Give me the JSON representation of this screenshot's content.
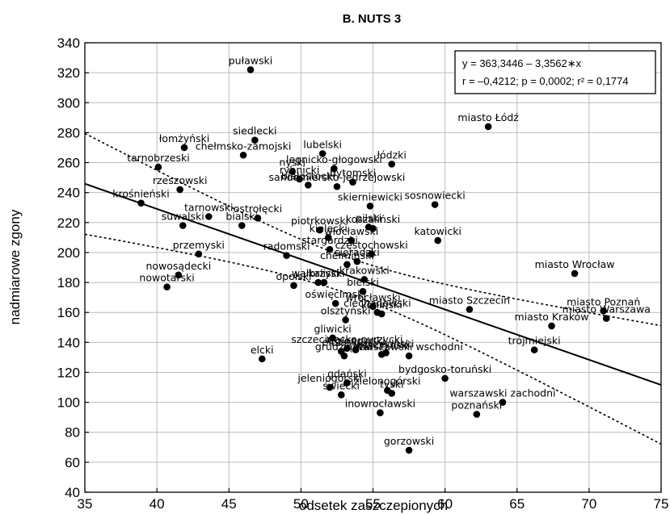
{
  "chart_data": {
    "type": "scatter",
    "title": "B. NUTS 3",
    "xlabel": "odsetek zaszczepionych",
    "ylabel": "nadmiarowe zgony",
    "xlim": [
      35,
      75
    ],
    "ylim": [
      40,
      340
    ],
    "xticks": [
      35,
      40,
      45,
      50,
      55,
      60,
      65,
      70,
      75
    ],
    "yticks": [
      40,
      60,
      80,
      100,
      120,
      140,
      160,
      180,
      200,
      220,
      240,
      260,
      280,
      300,
      320,
      340
    ],
    "grid": true,
    "regression": {
      "intercept": 363.3446,
      "slope": -3.3562
    },
    "annotation": {
      "line1": "y = 363,3446 – 3,3562∗x",
      "line2": "r = –0,4212; p = 0,0002; r² = 0,1774"
    },
    "points": [
      {
        "label": "puławski",
        "x": 46.5,
        "y": 322
      },
      {
        "label": "miasto Łódź",
        "x": 63.0,
        "y": 284
      },
      {
        "label": "siedlecki",
        "x": 46.8,
        "y": 275
      },
      {
        "label": "łomżyński",
        "x": 41.9,
        "y": 270
      },
      {
        "label": "chełmsko-zamojski",
        "x": 46.0,
        "y": 265
      },
      {
        "label": "lubelski",
        "x": 51.5,
        "y": 266
      },
      {
        "label": "łódzki",
        "x": 56.3,
        "y": 259
      },
      {
        "label": "tarnobrzeski",
        "x": 40.1,
        "y": 257
      },
      {
        "label": "legnicko-głogowski",
        "x": 52.3,
        "y": 256
      },
      {
        "label": "nyski",
        "x": 49.4,
        "y": 254
      },
      {
        "label": "rybnicki",
        "x": 49.9,
        "y": 249
      },
      {
        "label": "białostocki",
        "x": 50.5,
        "y": 245
      },
      {
        "label": "bytomski",
        "x": 53.6,
        "y": 247
      },
      {
        "label": "rzeszowski",
        "x": 41.6,
        "y": 242
      },
      {
        "label": "sandomiersko-jędrzejowski",
        "x": 52.5,
        "y": 244
      },
      {
        "label": "krośnieński",
        "x": 38.9,
        "y": 233
      },
      {
        "label": "skierniewicki",
        "x": 54.8,
        "y": 231
      },
      {
        "label": "sosnowiecki",
        "x": 59.3,
        "y": 232
      },
      {
        "label": "tarnowski",
        "x": 43.6,
        "y": 224
      },
      {
        "label": "ostrołęcki",
        "x": 47.0,
        "y": 223
      },
      {
        "label": "suwalski",
        "x": 41.8,
        "y": 218
      },
      {
        "label": "bialski",
        "x": 45.9,
        "y": 218
      },
      {
        "label": "piotrkowski",
        "x": 51.3,
        "y": 215
      },
      {
        "label": "pilski",
        "x": 54.7,
        "y": 217
      },
      {
        "label": "koszaliński",
        "x": 55.0,
        "y": 216
      },
      {
        "label": "kielecki",
        "x": 51.9,
        "y": 210
      },
      {
        "label": "włocławski",
        "x": 53.5,
        "y": 208
      },
      {
        "label": "katowicki",
        "x": 59.5,
        "y": 208
      },
      {
        "label": "stargardzki",
        "x": 52.0,
        "y": 202
      },
      {
        "label": "przemyski",
        "x": 42.9,
        "y": 199
      },
      {
        "label": "radomski",
        "x": 49.0,
        "y": 198
      },
      {
        "label": "częstochowski",
        "x": 54.9,
        "y": 199
      },
      {
        "label": "chełmiński",
        "x": 53.2,
        "y": 192
      },
      {
        "label": "sieradzki",
        "x": 53.9,
        "y": 194
      },
      {
        "label": "miasto Wrocław",
        "x": 69.0,
        "y": 186
      },
      {
        "label": "nowosądecki",
        "x": 41.5,
        "y": 185
      },
      {
        "label": "wałbrzyski",
        "x": 51.2,
        "y": 180
      },
      {
        "label": "krakowski",
        "x": 54.4,
        "y": 182
      },
      {
        "label": "nowotarski",
        "x": 40.7,
        "y": 177
      },
      {
        "label": "opolski",
        "x": 49.5,
        "y": 178
      },
      {
        "label": "kaliski",
        "x": 51.6,
        "y": 180
      },
      {
        "label": "bielski",
        "x": 54.3,
        "y": 174
      },
      {
        "label": "wrocławski",
        "x": 55.0,
        "y": 164
      },
      {
        "label": "oświęcimski",
        "x": 52.4,
        "y": 166
      },
      {
        "label": "miasto Szczecin",
        "x": 61.7,
        "y": 162
      },
      {
        "label": "miasto Poznań",
        "x": 71.0,
        "y": 161
      },
      {
        "label": "miasto Kraków",
        "x": 67.4,
        "y": 151
      },
      {
        "label": "miasto Warszawa",
        "x": 71.2,
        "y": 156
      },
      {
        "label": "olsztyński",
        "x": 53.1,
        "y": 155
      },
      {
        "label": "ciechanowski",
        "x": 55.3,
        "y": 160
      },
      {
        "label": "koniński",
        "x": 55.6,
        "y": 159
      },
      {
        "label": "szczeciński",
        "x": 55.9,
        "y": 133
      },
      {
        "label": "gliwicki",
        "x": 52.2,
        "y": 143
      },
      {
        "label": "szczecinecko-pyrzycki",
        "x": 53.2,
        "y": 136
      },
      {
        "label": "leszczyński",
        "x": 55.6,
        "y": 132
      },
      {
        "label": "trójmiejski",
        "x": 66.2,
        "y": 135
      },
      {
        "label": "legionowski",
        "x": 53.8,
        "y": 135
      },
      {
        "label": "grudziądzki",
        "x": 53.0,
        "y": 131
      },
      {
        "label": "elcki",
        "x": 47.3,
        "y": 129
      },
      {
        "label": "warszawski wschodni",
        "x": 57.5,
        "y": 131
      },
      {
        "label": "elbląski",
        "x": 52.8,
        "y": 134
      },
      {
        "label": "bydgosko-toruński",
        "x": 60.0,
        "y": 116
      },
      {
        "label": "gdański",
        "x": 53.2,
        "y": 113
      },
      {
        "label": "jeleniogórski",
        "x": 52.0,
        "y": 110
      },
      {
        "label": "tyski",
        "x": 56.3,
        "y": 106
      },
      {
        "label": "zielonogórski",
        "x": 56.0,
        "y": 108
      },
      {
        "label": "świecki",
        "x": 52.8,
        "y": 105
      },
      {
        "label": "warszawski zachodni",
        "x": 64.0,
        "y": 100
      },
      {
        "label": "poznański",
        "x": 62.2,
        "y": 92
      },
      {
        "label": "inowrocławski",
        "x": 55.5,
        "y": 93
      },
      {
        "label": "gorzowski",
        "x": 57.5,
        "y": 68
      }
    ]
  }
}
